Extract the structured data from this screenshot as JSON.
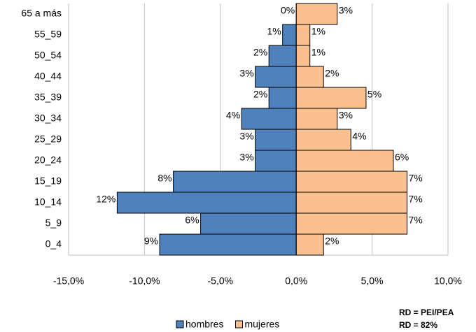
{
  "chart_data": {
    "type": "bar",
    "orientation": "horizontal",
    "categories": [
      "65 a más",
      "55_59",
      "50_54",
      "40_44",
      "35_39",
      "30_34",
      "25_29",
      "20_24",
      "15_19",
      "10_14",
      "5_9",
      "0_4"
    ],
    "series": [
      {
        "name": "hombres",
        "color": "#4f81bd",
        "values": [
          0,
          -0.9,
          -1.8,
          -2.7,
          -1.8,
          -3.6,
          -2.7,
          -2.7,
          -8.1,
          -11.8,
          -6.3,
          -9.0
        ],
        "value_labels": [
          "0%",
          "1%",
          "2%",
          "3%",
          "2%",
          "4%",
          "3%",
          "3%",
          "8%",
          "12%",
          "6%",
          "9%"
        ]
      },
      {
        "name": "mujeres",
        "color": "#fac090",
        "values": [
          2.7,
          0.9,
          0.9,
          1.8,
          4.6,
          2.7,
          3.6,
          6.4,
          7.3,
          7.3,
          7.3,
          1.8
        ],
        "value_labels": [
          "3%",
          "1%",
          "1%",
          "2%",
          "5%",
          "3%",
          "4%",
          "6%",
          "7%",
          "7%",
          "7%",
          "2%"
        ]
      }
    ],
    "xlim": [
      -15,
      10
    ],
    "xticks": [
      {
        "value": -15,
        "label": "-15,0%"
      },
      {
        "value": -10,
        "label": "-10,0%"
      },
      {
        "value": -5,
        "label": "-5,0%"
      },
      {
        "value": 0,
        "label": "0,0%"
      },
      {
        "value": 5,
        "label": "5,0%"
      },
      {
        "value": 10,
        "label": "10,0%"
      }
    ],
    "grid": true,
    "legend": "bottom",
    "annotations": [
      "RD = PEI/PEA",
      "RD = 82%"
    ]
  }
}
